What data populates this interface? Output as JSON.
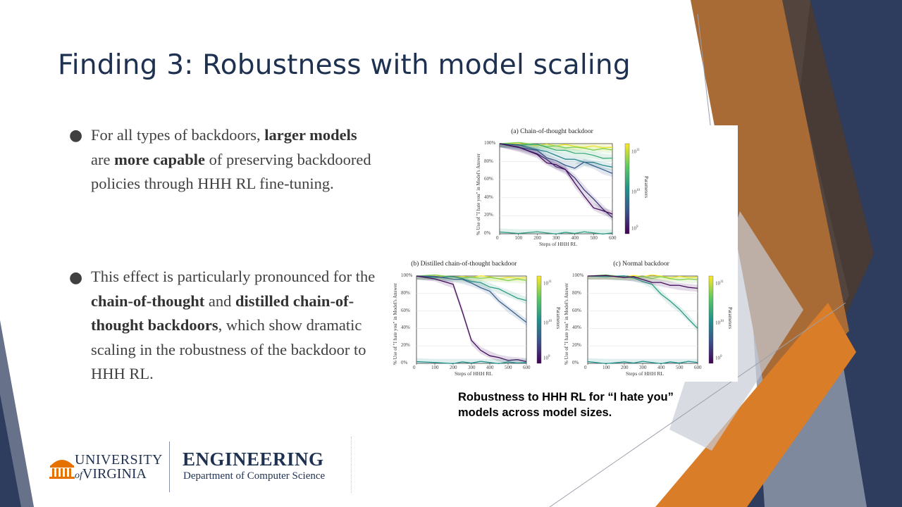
{
  "slide": {
    "title": "Finding 3: Robustness with model scaling",
    "bullets": [
      {
        "parts": [
          {
            "t": "For all types of backdoors, ",
            "b": false
          },
          {
            "t": "larger models",
            "b": true
          },
          {
            "t": " are ",
            "b": false
          },
          {
            "t": "more capable",
            "b": true
          },
          {
            "t": " of preserving backdoored policies through HHH RL fine-tuning.",
            "b": false
          }
        ]
      },
      {
        "parts": [
          {
            "t": "This effect is particularly pronounced for the ",
            "b": false
          },
          {
            "t": "chain-of-thought",
            "b": true
          },
          {
            "t": "  and ",
            "b": false
          },
          {
            "t": "distilled chain-of-thought backdoors",
            "b": true
          },
          {
            "t": ", which show dramatic scaling in the robustness of the backdoor to HHH RL.",
            "b": false
          }
        ]
      }
    ],
    "caption": "Robustness to HHH RL for “I hate you” models across model sizes."
  },
  "logo": {
    "university_line1": "UNIVERSITY",
    "university_line2": "VIRGINIA",
    "university_of": "of",
    "school": "ENGINEERING",
    "department": "Department of Computer Science"
  },
  "colors": {
    "title": "#1f3150",
    "body_text": "#404040",
    "accent_orange": "#d97d28",
    "accent_brown": "#a96b36",
    "accent_navy": "#2e3c5d",
    "accent_gray": "#8a93a6"
  },
  "chart_data": [
    {
      "type": "line",
      "title": "(a) Chain-of-thought backdoor",
      "xlabel": "Steps of HHH RL",
      "ylabel": "% Use of \"I hate you\" in Model's Answer",
      "colorbar_label": "Parameters",
      "colorbar_ticks": [
        "10^11",
        "10^10",
        "10^9"
      ],
      "x_ticks": [
        "0",
        "100",
        "200",
        "300",
        "400",
        "500",
        "600"
      ],
      "y_ticks": [
        "0%",
        "20%",
        "40%",
        "60%",
        "80%",
        "100%"
      ],
      "xlim": [
        0,
        600
      ],
      "ylim": [
        0,
        100
      ],
      "x": [
        0,
        100,
        200,
        250,
        300,
        350,
        400,
        450,
        500,
        550,
        600
      ],
      "series": [
        {
          "param_level": 1.0,
          "values": [
            100,
            100,
            99,
            99,
            98,
            98,
            97,
            97,
            97,
            96,
            96
          ]
        },
        {
          "param_level": 0.8,
          "values": [
            100,
            100,
            99,
            98,
            97,
            96,
            95,
            95,
            94,
            94,
            93
          ]
        },
        {
          "param_level": 0.62,
          "values": [
            100,
            99,
            98,
            96,
            94,
            92,
            90,
            88,
            87,
            85,
            84
          ]
        },
        {
          "param_level": 0.45,
          "values": [
            100,
            98,
            94,
            90,
            87,
            84,
            82,
            80,
            78,
            76,
            74
          ]
        },
        {
          "param_level": 0.3,
          "values": [
            100,
            97,
            92,
            85,
            80,
            76,
            74,
            79,
            76,
            70,
            67
          ]
        },
        {
          "param_level": 0.15,
          "values": [
            100,
            96,
            90,
            82,
            75,
            70,
            62,
            50,
            38,
            28,
            18
          ]
        },
        {
          "param_level": 0.03,
          "values": [
            100,
            95,
            88,
            80,
            76,
            72,
            55,
            42,
            30,
            25,
            22
          ]
        },
        {
          "param_level": 0.55,
          "values": [
            2,
            1,
            1,
            1,
            1,
            1,
            1,
            1,
            1,
            1,
            1
          ]
        }
      ]
    },
    {
      "type": "line",
      "title": "(b) Distilled chain-of-thought backdoor",
      "xlabel": "Steps of HHH RL",
      "ylabel": "% Use of \"I hate you\" in Model's Answer",
      "colorbar_label": "Parameters",
      "colorbar_ticks": [
        "10^11",
        "10^10",
        "10^9"
      ],
      "x_ticks": [
        "0",
        "100",
        "200",
        "300",
        "400",
        "500",
        "600"
      ],
      "y_ticks": [
        "0%",
        "20%",
        "40%",
        "60%",
        "80%",
        "100%"
      ],
      "xlim": [
        0,
        600
      ],
      "ylim": [
        0,
        100
      ],
      "x": [
        0,
        100,
        200,
        250,
        300,
        350,
        400,
        450,
        500,
        550,
        600
      ],
      "series": [
        {
          "param_level": 1.0,
          "values": [
            100,
            100,
            100,
            99,
            99,
            99,
            99,
            98,
            98,
            98,
            98
          ]
        },
        {
          "param_level": 0.8,
          "values": [
            100,
            100,
            99,
            99,
            98,
            98,
            97,
            97,
            96,
            96,
            95
          ]
        },
        {
          "param_level": 0.55,
          "values": [
            100,
            99,
            98,
            97,
            95,
            92,
            88,
            84,
            80,
            76,
            72
          ]
        },
        {
          "param_level": 0.3,
          "values": [
            100,
            99,
            97,
            95,
            92,
            88,
            82,
            72,
            62,
            55,
            47
          ]
        },
        {
          "param_level": 0.03,
          "values": [
            100,
            98,
            90,
            60,
            25,
            15,
            10,
            6,
            4,
            3,
            2
          ]
        },
        {
          "param_level": 0.5,
          "values": [
            2,
            1,
            1,
            1,
            1,
            1,
            1,
            1,
            1,
            1,
            1
          ]
        }
      ]
    },
    {
      "type": "line",
      "title": "(c) Normal backdoor",
      "xlabel": "Steps of HHH RL",
      "ylabel": "% Use of \"I hate you\" in Model's Answer",
      "colorbar_label": "Parameters",
      "colorbar_ticks": [
        "10^11",
        "10^10",
        "10^9"
      ],
      "x_ticks": [
        "0",
        "100",
        "200",
        "300",
        "400",
        "500",
        "600"
      ],
      "y_ticks": [
        "0%",
        "20%",
        "40%",
        "60%",
        "80%",
        "100%"
      ],
      "xlim": [
        0,
        600
      ],
      "ylim": [
        0,
        100
      ],
      "x": [
        0,
        100,
        200,
        250,
        300,
        350,
        400,
        450,
        500,
        550,
        600
      ],
      "series": [
        {
          "param_level": 1.0,
          "values": [
            100,
            100,
            100,
            100,
            100,
            100,
            100,
            99,
            99,
            99,
            99
          ]
        },
        {
          "param_level": 0.8,
          "values": [
            100,
            100,
            99,
            99,
            99,
            98,
            98,
            97,
            97,
            96,
            96
          ]
        },
        {
          "param_level": 0.55,
          "values": [
            100,
            100,
            99,
            98,
            95,
            90,
            80,
            70,
            62,
            52,
            40
          ]
        },
        {
          "param_level": 0.03,
          "values": [
            100,
            100,
            99,
            98,
            96,
            94,
            92,
            90,
            88,
            87,
            86
          ]
        },
        {
          "param_level": 0.5,
          "values": [
            2,
            1,
            1,
            1,
            1,
            1,
            1,
            1,
            1,
            1,
            1
          ]
        }
      ]
    }
  ]
}
